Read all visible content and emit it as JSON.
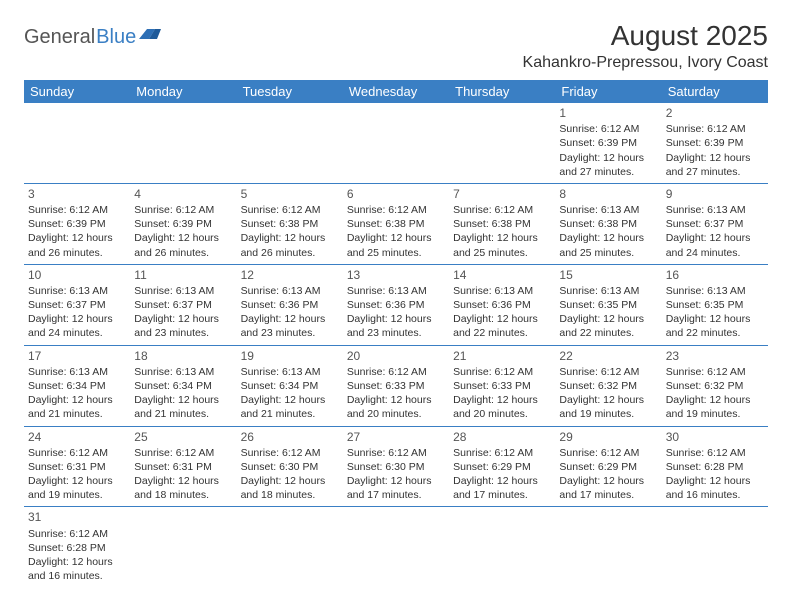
{
  "logo": {
    "general": "General",
    "blue": "Blue"
  },
  "title": "August 2025",
  "location": "Kahankro-Prepressou, Ivory Coast",
  "colors": {
    "header_bg": "#3a7fc4",
    "header_text": "#ffffff",
    "rule": "#3a7fc4",
    "text": "#333333",
    "logo_gray": "#555555",
    "logo_blue": "#3a7fc4",
    "background": "#ffffff"
  },
  "weekdays": [
    "Sunday",
    "Monday",
    "Tuesday",
    "Wednesday",
    "Thursday",
    "Friday",
    "Saturday"
  ],
  "weeks": [
    [
      null,
      null,
      null,
      null,
      null,
      {
        "n": "1",
        "sr": "6:12 AM",
        "ss": "6:39 PM",
        "dl": "12 hours and 27 minutes."
      },
      {
        "n": "2",
        "sr": "6:12 AM",
        "ss": "6:39 PM",
        "dl": "12 hours and 27 minutes."
      }
    ],
    [
      {
        "n": "3",
        "sr": "6:12 AM",
        "ss": "6:39 PM",
        "dl": "12 hours and 26 minutes."
      },
      {
        "n": "4",
        "sr": "6:12 AM",
        "ss": "6:39 PM",
        "dl": "12 hours and 26 minutes."
      },
      {
        "n": "5",
        "sr": "6:12 AM",
        "ss": "6:38 PM",
        "dl": "12 hours and 26 minutes."
      },
      {
        "n": "6",
        "sr": "6:12 AM",
        "ss": "6:38 PM",
        "dl": "12 hours and 25 minutes."
      },
      {
        "n": "7",
        "sr": "6:12 AM",
        "ss": "6:38 PM",
        "dl": "12 hours and 25 minutes."
      },
      {
        "n": "8",
        "sr": "6:13 AM",
        "ss": "6:38 PM",
        "dl": "12 hours and 25 minutes."
      },
      {
        "n": "9",
        "sr": "6:13 AM",
        "ss": "6:37 PM",
        "dl": "12 hours and 24 minutes."
      }
    ],
    [
      {
        "n": "10",
        "sr": "6:13 AM",
        "ss": "6:37 PM",
        "dl": "12 hours and 24 minutes."
      },
      {
        "n": "11",
        "sr": "6:13 AM",
        "ss": "6:37 PM",
        "dl": "12 hours and 23 minutes."
      },
      {
        "n": "12",
        "sr": "6:13 AM",
        "ss": "6:36 PM",
        "dl": "12 hours and 23 minutes."
      },
      {
        "n": "13",
        "sr": "6:13 AM",
        "ss": "6:36 PM",
        "dl": "12 hours and 23 minutes."
      },
      {
        "n": "14",
        "sr": "6:13 AM",
        "ss": "6:36 PM",
        "dl": "12 hours and 22 minutes."
      },
      {
        "n": "15",
        "sr": "6:13 AM",
        "ss": "6:35 PM",
        "dl": "12 hours and 22 minutes."
      },
      {
        "n": "16",
        "sr": "6:13 AM",
        "ss": "6:35 PM",
        "dl": "12 hours and 22 minutes."
      }
    ],
    [
      {
        "n": "17",
        "sr": "6:13 AM",
        "ss": "6:34 PM",
        "dl": "12 hours and 21 minutes."
      },
      {
        "n": "18",
        "sr": "6:13 AM",
        "ss": "6:34 PM",
        "dl": "12 hours and 21 minutes."
      },
      {
        "n": "19",
        "sr": "6:13 AM",
        "ss": "6:34 PM",
        "dl": "12 hours and 21 minutes."
      },
      {
        "n": "20",
        "sr": "6:12 AM",
        "ss": "6:33 PM",
        "dl": "12 hours and 20 minutes."
      },
      {
        "n": "21",
        "sr": "6:12 AM",
        "ss": "6:33 PM",
        "dl": "12 hours and 20 minutes."
      },
      {
        "n": "22",
        "sr": "6:12 AM",
        "ss": "6:32 PM",
        "dl": "12 hours and 19 minutes."
      },
      {
        "n": "23",
        "sr": "6:12 AM",
        "ss": "6:32 PM",
        "dl": "12 hours and 19 minutes."
      }
    ],
    [
      {
        "n": "24",
        "sr": "6:12 AM",
        "ss": "6:31 PM",
        "dl": "12 hours and 19 minutes."
      },
      {
        "n": "25",
        "sr": "6:12 AM",
        "ss": "6:31 PM",
        "dl": "12 hours and 18 minutes."
      },
      {
        "n": "26",
        "sr": "6:12 AM",
        "ss": "6:30 PM",
        "dl": "12 hours and 18 minutes."
      },
      {
        "n": "27",
        "sr": "6:12 AM",
        "ss": "6:30 PM",
        "dl": "12 hours and 17 minutes."
      },
      {
        "n": "28",
        "sr": "6:12 AM",
        "ss": "6:29 PM",
        "dl": "12 hours and 17 minutes."
      },
      {
        "n": "29",
        "sr": "6:12 AM",
        "ss": "6:29 PM",
        "dl": "12 hours and 17 minutes."
      },
      {
        "n": "30",
        "sr": "6:12 AM",
        "ss": "6:28 PM",
        "dl": "12 hours and 16 minutes."
      }
    ],
    [
      {
        "n": "31",
        "sr": "6:12 AM",
        "ss": "6:28 PM",
        "dl": "12 hours and 16 minutes."
      },
      null,
      null,
      null,
      null,
      null,
      null
    ]
  ],
  "labels": {
    "sunrise": "Sunrise: ",
    "sunset": "Sunset: ",
    "daylight": "Daylight: "
  }
}
